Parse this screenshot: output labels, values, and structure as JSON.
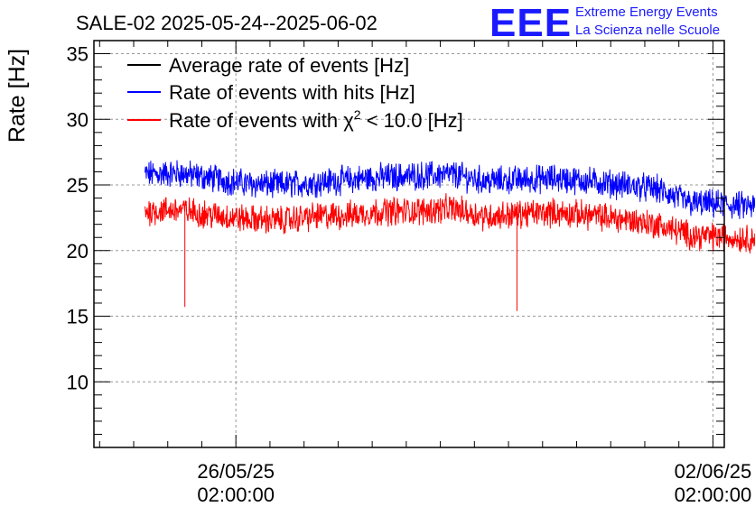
{
  "chart_data": {
    "type": "line",
    "title": "SALE-02 2025-05-24--2025-06-02",
    "ylabel": "Rate [Hz]",
    "xlabel": "",
    "ylim": [
      5,
      36
    ],
    "xlim_days": [
      "2025-05-24T00:00:00",
      "2025-06-02T06:00:00"
    ],
    "yticks": [
      "10",
      "15",
      "20",
      "25",
      "30",
      "35"
    ],
    "xticks": [
      {
        "line1": "26/05/25",
        "line2": "02:00:00",
        "t": "2025-05-26T02:00:00"
      },
      {
        "line1": "02/06/25",
        "line2": "02:00:00",
        "t": "2025-06-02T02:00:00"
      }
    ],
    "grid": true,
    "legend_position": "top-left",
    "series": [
      {
        "name": "Average rate of events [Hz]",
        "color": "#000000",
        "start": "2025-05-24T18:00:00",
        "end": "2025-06-02T18:00:00",
        "values": []
      },
      {
        "name": "Rate of events with hits [Hz]",
        "color": "#0000ff",
        "start": "2025-05-24T18:00:00",
        "end": "2025-06-02T18:00:00",
        "points": [
          [
            "2025-05-24T18:00:00",
            25.8
          ],
          [
            "2025-05-25T06:00:00",
            25.9
          ],
          [
            "2025-05-25T18:00:00",
            25.5
          ],
          [
            "2025-05-26T06:00:00",
            25.1
          ],
          [
            "2025-05-26T18:00:00",
            25.0
          ],
          [
            "2025-05-27T06:00:00",
            25.2
          ],
          [
            "2025-05-27T18:00:00",
            25.4
          ],
          [
            "2025-05-28T06:00:00",
            25.6
          ],
          [
            "2025-05-28T18:00:00",
            25.7
          ],
          [
            "2025-05-29T06:00:00",
            25.8
          ],
          [
            "2025-05-29T18:00:00",
            25.3
          ],
          [
            "2025-05-30T06:00:00",
            25.4
          ],
          [
            "2025-05-30T18:00:00",
            25.5
          ],
          [
            "2025-05-31T06:00:00",
            25.3
          ],
          [
            "2025-05-31T18:00:00",
            25.0
          ],
          [
            "2025-06-01T06:00:00",
            24.7
          ],
          [
            "2025-06-01T18:00:00",
            23.6
          ],
          [
            "2025-06-02T06:00:00",
            23.5
          ],
          [
            "2025-06-02T18:00:00",
            23.3
          ]
        ],
        "noise": 0.9
      },
      {
        "name": "Rate of events with χ² < 10.0 [Hz]",
        "color": "#ff0000",
        "start": "2025-05-24T18:00:00",
        "end": "2025-06-02T18:00:00",
        "points": [
          [
            "2025-05-24T18:00:00",
            23.0
          ],
          [
            "2025-05-25T06:00:00",
            23.1
          ],
          [
            "2025-05-25T18:00:00",
            22.7
          ],
          [
            "2025-05-26T06:00:00",
            22.4
          ],
          [
            "2025-05-26T18:00:00",
            22.3
          ],
          [
            "2025-05-27T06:00:00",
            22.6
          ],
          [
            "2025-05-27T18:00:00",
            22.7
          ],
          [
            "2025-05-28T06:00:00",
            23.0
          ],
          [
            "2025-05-28T18:00:00",
            23.0
          ],
          [
            "2025-05-29T06:00:00",
            23.2
          ],
          [
            "2025-05-29T18:00:00",
            22.6
          ],
          [
            "2025-05-30T06:00:00",
            22.8
          ],
          [
            "2025-05-30T18:00:00",
            22.9
          ],
          [
            "2025-05-31T06:00:00",
            22.7
          ],
          [
            "2025-05-31T18:00:00",
            22.4
          ],
          [
            "2025-06-01T06:00:00",
            22.0
          ],
          [
            "2025-06-01T18:00:00",
            21.2
          ],
          [
            "2025-06-02T06:00:00",
            21.0
          ],
          [
            "2025-06-02T18:00:00",
            20.9
          ]
        ],
        "noise": 0.9,
        "dips": [
          [
            "2025-05-25T08:00:00",
            15.7
          ],
          [
            "2025-05-30T05:00:00",
            15.4
          ]
        ]
      }
    ]
  },
  "logo": {
    "mark": "EEE",
    "line1": "Extreme Energy Events",
    "line2": "La Scienza nelle Scuole"
  },
  "legend": {
    "item1": "Average rate of events [Hz]",
    "item2": "Rate of events with hits [Hz]",
    "item3_prefix": "Rate of events with ",
    "item3_chi": "χ",
    "item3_sup": "2",
    "item3_suffix": " < 10.0 [Hz]"
  },
  "colors": {
    "black": "#000000",
    "blue": "#0000ff",
    "red": "#ff0000",
    "logo": "#1a1aff"
  }
}
